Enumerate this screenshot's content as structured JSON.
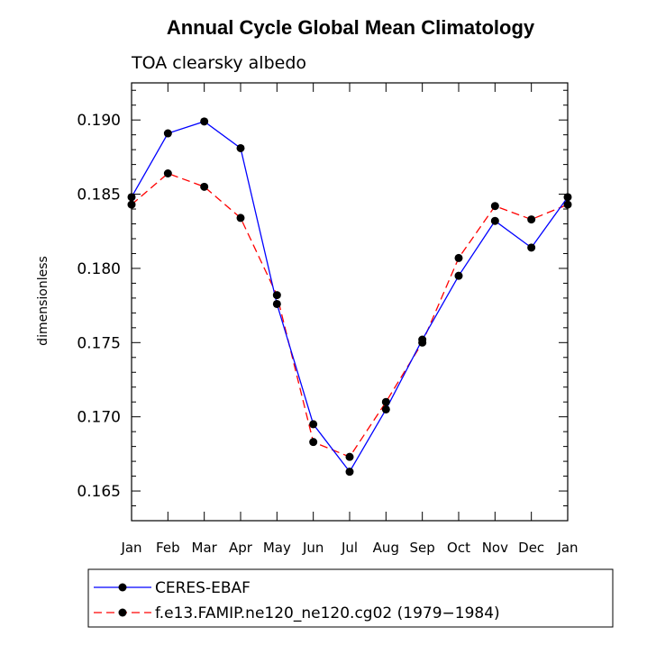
{
  "chart_data": {
    "type": "line",
    "title": "Annual Cycle Global Mean Climatology",
    "subtitle": "TOA clearsky albedo",
    "xlabel": "",
    "ylabel": "dimensionless",
    "categories": [
      "Jan",
      "Feb",
      "Mar",
      "Apr",
      "May",
      "Jun",
      "Jul",
      "Aug",
      "Sep",
      "Oct",
      "Nov",
      "Dec",
      "Jan"
    ],
    "ylim": [
      0.163,
      0.1925
    ],
    "yticks": [
      0.165,
      0.17,
      0.175,
      0.18,
      0.185,
      0.19
    ],
    "ytick_labels": [
      "0.165",
      "0.170",
      "0.175",
      "0.180",
      "0.185",
      "0.190"
    ],
    "series": [
      {
        "name": "CERES-EBAF",
        "color": "#0000ff",
        "dash": "solid",
        "values": [
          0.1848,
          0.1891,
          0.1899,
          0.1881,
          0.1776,
          0.1695,
          0.1663,
          0.1705,
          0.1752,
          0.1795,
          0.1832,
          0.1814,
          0.1848
        ]
      },
      {
        "name": "f.e13.FAMIP.ne120_ne120.cg02 (1979−1984)",
        "color": "#ff0000",
        "dash": "dashed",
        "values": [
          0.1843,
          0.1864,
          0.1855,
          0.1834,
          0.1782,
          0.1683,
          0.1673,
          0.171,
          0.175,
          0.1807,
          0.1842,
          0.1833,
          0.1843
        ]
      }
    ]
  }
}
